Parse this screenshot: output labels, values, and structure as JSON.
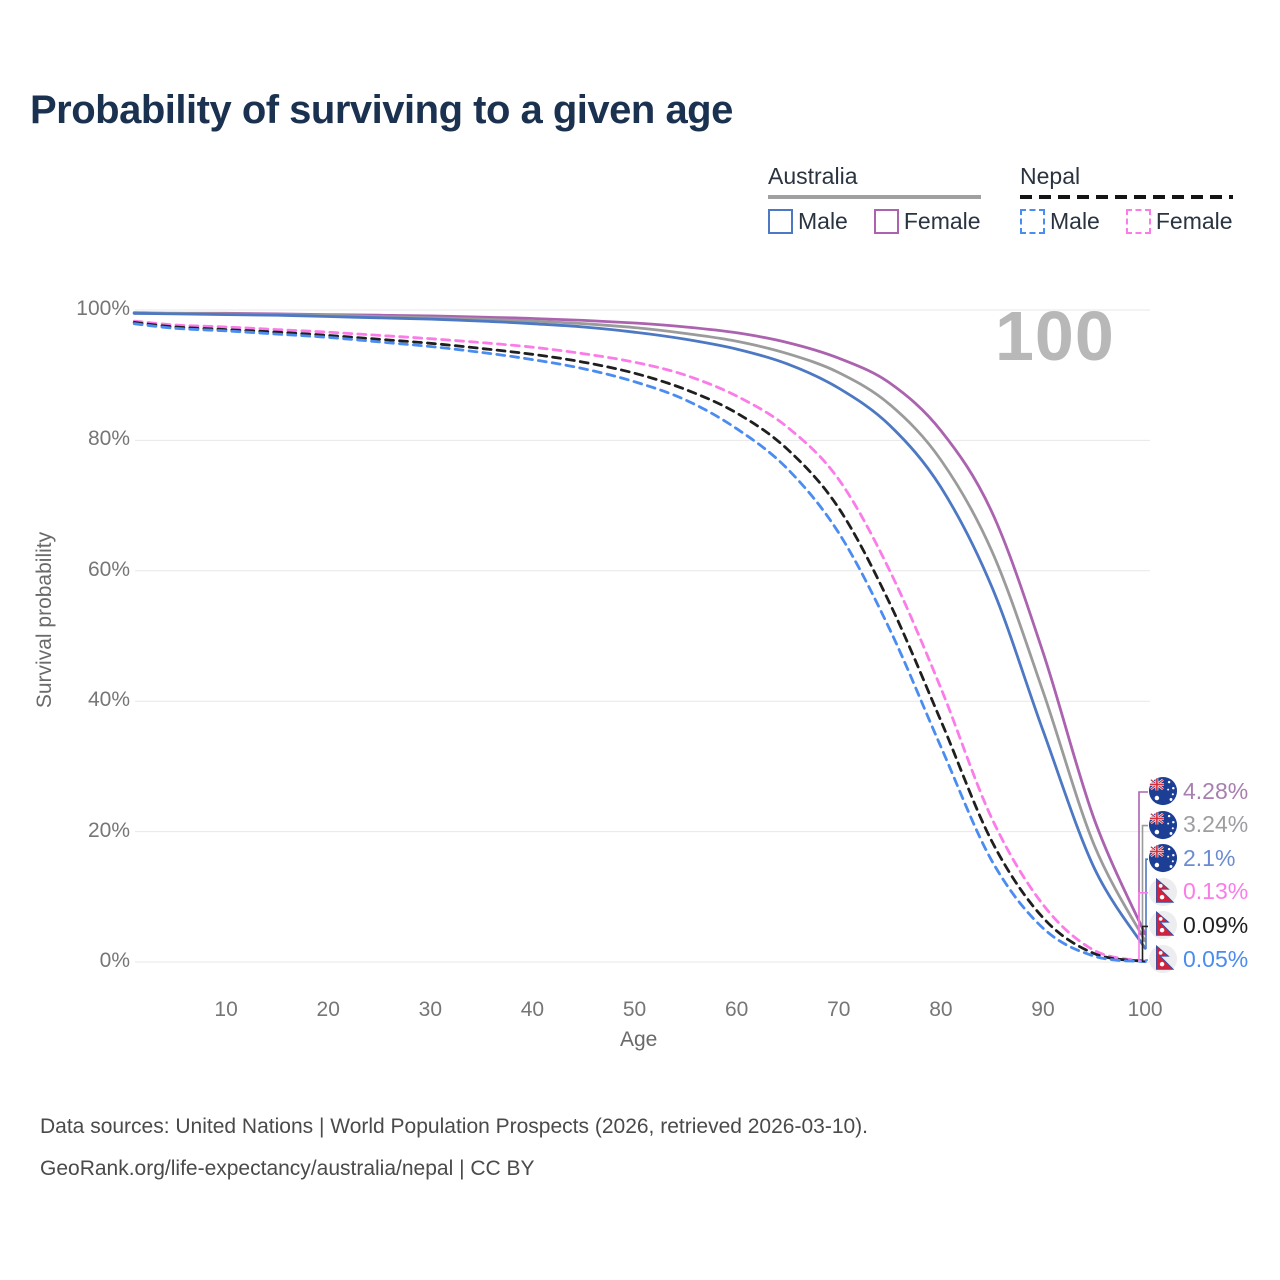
{
  "title": "Probability of surviving to a given age",
  "watermark": "100",
  "legend": {
    "groups": [
      {
        "label": "Australia",
        "underline_style": "solid",
        "items": [
          {
            "label": "Male",
            "color": "#4d78c3",
            "dashed": false
          },
          {
            "label": "Female",
            "color": "#ab63b0",
            "dashed": false
          }
        ]
      },
      {
        "label": "Nepal",
        "underline_style": "dashed",
        "items": [
          {
            "label": "Male",
            "color": "#4b8cf0",
            "dashed": true
          },
          {
            "label": "Female",
            "color": "#fb7ce8",
            "dashed": true
          }
        ]
      }
    ]
  },
  "chart_data": {
    "type": "line",
    "title": "Probability of surviving to a given age",
    "xlabel": "Age",
    "ylabel": "Survival probability",
    "xlim": [
      1,
      100
    ],
    "ylim": [
      0,
      100
    ],
    "grid": "horizontal-only",
    "legend_position": "top-right",
    "x_ticks": {
      "values": [
        10,
        20,
        30,
        40,
        50,
        60,
        70,
        80,
        90,
        100
      ],
      "labels": [
        "10",
        "20",
        "30",
        "40",
        "50",
        "60",
        "70",
        "80",
        "90",
        "100"
      ]
    },
    "y_ticks": {
      "values": [
        0,
        20,
        40,
        60,
        80,
        100
      ],
      "labels": [
        "0%",
        "20%",
        "40%",
        "60%",
        "80%",
        "100%"
      ]
    },
    "ages": [
      1,
      5,
      10,
      15,
      20,
      25,
      30,
      35,
      40,
      45,
      50,
      55,
      60,
      65,
      70,
      75,
      80,
      85,
      90,
      95,
      100
    ],
    "series": [
      {
        "name": "Australia Female",
        "country": "australia",
        "sex": "female",
        "color": "#ab63b0",
        "dashed": false,
        "values": [
          99.6,
          99.5,
          99.5,
          99.4,
          99.3,
          99.2,
          99.1,
          98.9,
          98.7,
          98.4,
          98.0,
          97.4,
          96.5,
          95.0,
          92.6,
          88.8,
          81.5,
          69.0,
          47.5,
          22.0,
          4.28
        ],
        "end_label": "4.28%",
        "end_label_color": "#a87fb0",
        "flag": "australia"
      },
      {
        "name": "Australia Both sexes",
        "country": "australia",
        "sex": "both",
        "color": "#9b9b9b",
        "dashed": false,
        "values": [
          99.5,
          99.5,
          99.4,
          99.3,
          99.2,
          99.0,
          98.8,
          98.6,
          98.3,
          97.9,
          97.3,
          96.4,
          95.2,
          93.3,
          90.4,
          85.5,
          77.0,
          63.0,
          41.5,
          18.0,
          3.24
        ],
        "end_label": "3.24%",
        "end_label_color": "#9e9ea2",
        "flag": "australia"
      },
      {
        "name": "Australia Male",
        "country": "australia",
        "sex": "male",
        "color": "#4d78c3",
        "dashed": false,
        "values": [
          99.5,
          99.4,
          99.3,
          99.2,
          99.0,
          98.8,
          98.6,
          98.3,
          97.9,
          97.4,
          96.6,
          95.5,
          94.0,
          91.7,
          88.0,
          82.3,
          72.8,
          57.5,
          35.5,
          14.5,
          2.1
        ],
        "end_label": "2.1%",
        "end_label_color": "#6a8cd4",
        "flag": "australia"
      },
      {
        "name": "Nepal Female",
        "country": "nepal",
        "sex": "female",
        "color": "#fb7ce8",
        "dashed": true,
        "values": [
          98.3,
          97.7,
          97.4,
          97.0,
          96.6,
          96.1,
          95.6,
          95.0,
          94.3,
          93.3,
          92.0,
          90.0,
          86.8,
          82.0,
          74.0,
          60.0,
          42.0,
          22.0,
          8.8,
          1.8,
          0.13
        ],
        "end_label": "0.13%",
        "end_label_color": "#fb7ce8",
        "flag": "nepal"
      },
      {
        "name": "Nepal Both sexes",
        "country": "nepal",
        "sex": "both",
        "color": "#1f1f1f",
        "dashed": true,
        "values": [
          98.1,
          97.4,
          97.0,
          96.6,
          96.1,
          95.5,
          94.9,
          94.1,
          93.2,
          92.0,
          90.3,
          87.8,
          84.2,
          78.6,
          69.6,
          55.0,
          37.0,
          18.5,
          6.8,
          1.3,
          0.09
        ],
        "end_label": "0.09%",
        "end_label_color": "#1f1f1f",
        "flag": "nepal"
      },
      {
        "name": "Nepal Male",
        "country": "nepal",
        "sex": "male",
        "color": "#4b8cf0",
        "dashed": true,
        "values": [
          97.9,
          97.2,
          96.8,
          96.3,
          95.8,
          95.1,
          94.4,
          93.5,
          92.4,
          91.0,
          89.0,
          86.2,
          81.8,
          75.6,
          65.8,
          51.0,
          33.0,
          15.5,
          5.2,
          0.9,
          0.05
        ],
        "end_label": "0.05%",
        "end_label_color": "#4b8cf0",
        "flag": "nepal"
      }
    ]
  },
  "source": {
    "line1": "Data sources: United Nations | World Population Prospects (2026, retrieved 2026-03-10).",
    "line2": "GeoRank.org/life-expectancy/australia/nepal | CC BY"
  }
}
